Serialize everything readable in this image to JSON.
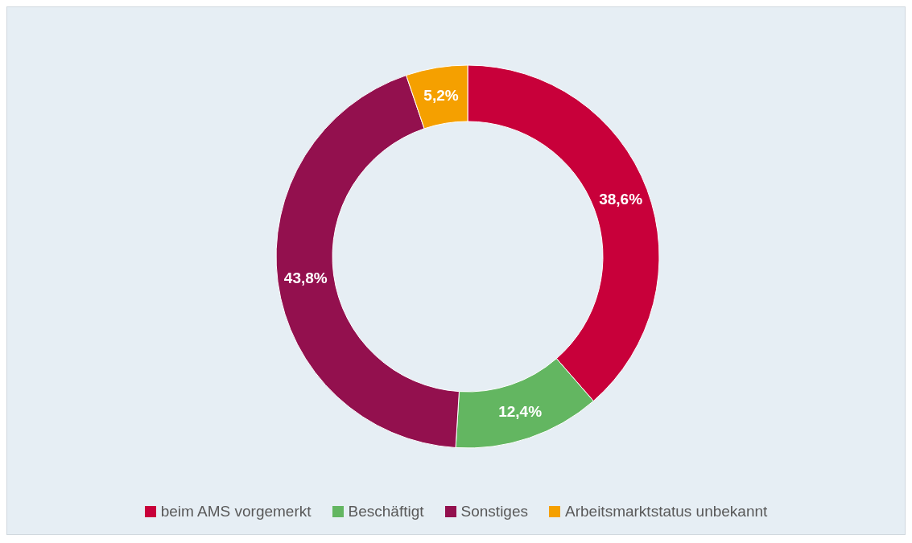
{
  "chart_data": {
    "type": "donut",
    "categories": [
      "beim AMS vorgemerkt",
      "Beschäftigt",
      "Sonstiges",
      "Arbeitsmarktstatus unbekannt"
    ],
    "values": [
      38.6,
      12.4,
      43.8,
      5.2
    ],
    "value_labels": [
      "38,6%",
      "12,4%",
      "43,8%",
      "5,2%"
    ],
    "colors": [
      "#c8003a",
      "#63b661",
      "#93104e",
      "#f5a000"
    ],
    "legend": "bottom"
  }
}
